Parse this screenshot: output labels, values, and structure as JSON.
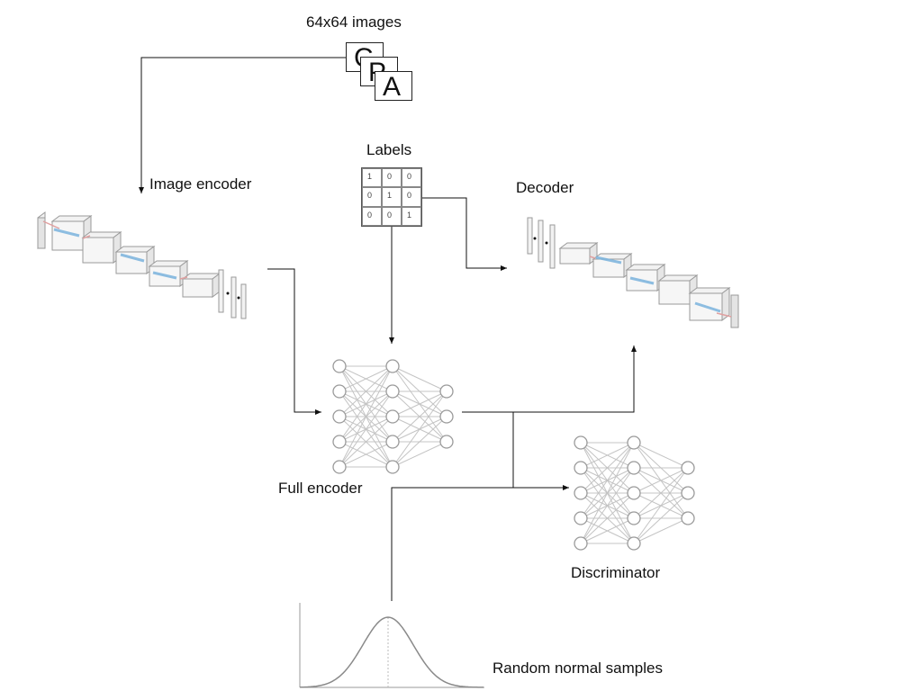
{
  "images": {
    "title": "64x64 images",
    "cards": [
      "C",
      "P",
      "A"
    ]
  },
  "labels": {
    "title": "Labels",
    "matrix": [
      [
        "1",
        "0",
        "0"
      ],
      [
        "0",
        "1",
        "0"
      ],
      [
        "0",
        "0",
        "1"
      ]
    ]
  },
  "nodes": {
    "image_encoder": "Image encoder",
    "decoder": "Decoder",
    "full_encoder": "Full encoder",
    "discriminator": "Discriminator",
    "random_samples": "Random normal samples"
  }
}
